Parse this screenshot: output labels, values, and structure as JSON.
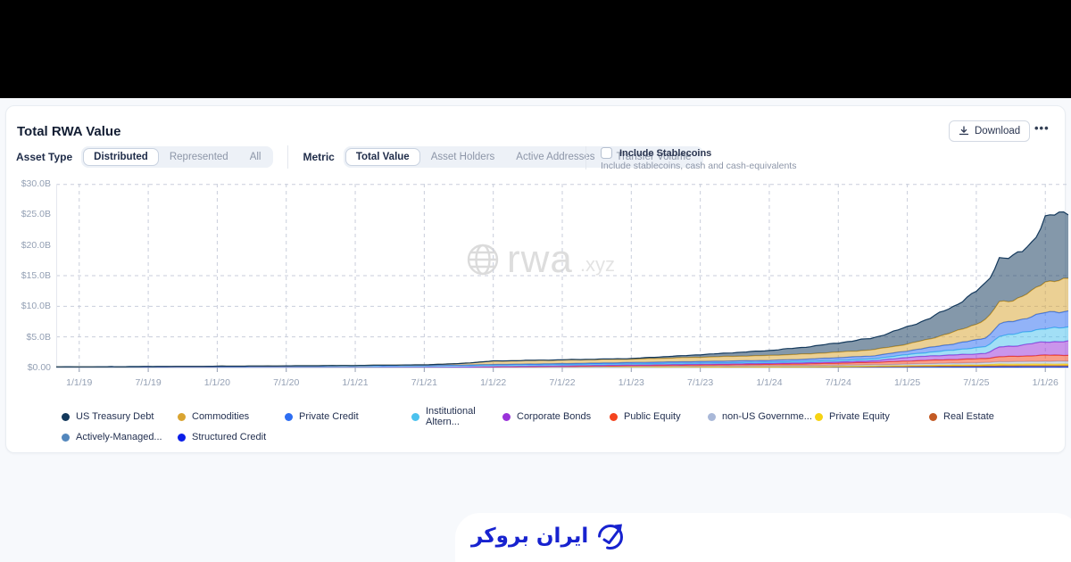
{
  "header": {
    "title": "Total RWA Value",
    "download_label": "Download",
    "more_label": "•••"
  },
  "filters": {
    "asset_type": {
      "label": "Asset Type",
      "options": [
        "Distributed",
        "Represented",
        "All"
      ],
      "selected": "Distributed"
    },
    "metric": {
      "label": "Metric",
      "options": [
        "Total Value",
        "Asset Holders",
        "Active Addresses",
        "Transfer Volume"
      ],
      "selected": "Total Value"
    },
    "stablecoins": {
      "label": "Include Stablecoins",
      "sublabel": "Include stablecoins, cash and cash-equivalents",
      "checked": false
    }
  },
  "watermark": {
    "brand": "rwa",
    "tld": ".xyz"
  },
  "footer_logo": {
    "text": "ایران بروکر",
    "color": "#1722cf"
  },
  "chart_data": {
    "type": "area",
    "stacked": true,
    "title": "Total RWA Value",
    "xlabel": "",
    "ylabel": "",
    "ylim": [
      0,
      30
    ],
    "grid": "dashed",
    "legend_position": "bottom",
    "y_tick_labels": [
      "$30.0B",
      "$25.0B",
      "$20.0B",
      "$15.0B",
      "$10.0B",
      "$5.0B",
      "$0.00"
    ],
    "y_tick_values": [
      30,
      25,
      20,
      15,
      10,
      5,
      0
    ],
    "y_gridline_values": [
      30,
      15,
      10,
      5
    ],
    "x_tick_labels": [
      "1/1/19",
      "7/1/19",
      "1/1/20",
      "7/1/20",
      "1/1/21",
      "7/1/21",
      "1/1/22",
      "7/1/22",
      "1/1/23",
      "7/1/23",
      "1/1/24",
      "7/1/24",
      "1/1/25",
      "7/1/25",
      "1/1/26"
    ],
    "x_tick_months": [
      0,
      6,
      12,
      18,
      24,
      30,
      36,
      42,
      48,
      54,
      60,
      66,
      72,
      78,
      84
    ],
    "x_domain_months": [
      -2,
      86
    ],
    "x_months": [
      -2,
      0,
      6,
      12,
      18,
      24,
      30,
      33,
      36,
      42,
      48,
      54,
      60,
      63,
      66,
      69,
      72,
      74,
      76,
      78,
      79,
      80,
      81,
      82,
      83,
      84,
      86
    ],
    "units": "USD billions",
    "series": [
      {
        "name": "US Treasury Debt",
        "color": "#14395c",
        "values": [
          0,
          0,
          0,
          0,
          0,
          0,
          0,
          0,
          0.01,
          0.02,
          0.1,
          0.4,
          0.8,
          1.1,
          1.5,
          1.9,
          2.8,
          3.4,
          4.2,
          5.3,
          6.0,
          7.2,
          7.0,
          7.4,
          8.2,
          10.4,
          11.0
        ]
      },
      {
        "name": "Commodities",
        "color": "#d9a431",
        "values": [
          0,
          0,
          0,
          0.01,
          0.02,
          0.03,
          0.1,
          0.25,
          0.55,
          0.6,
          0.55,
          0.7,
          0.8,
          0.85,
          0.9,
          1.0,
          1.1,
          1.4,
          1.9,
          2.6,
          3.0,
          3.6,
          3.4,
          3.7,
          4.2,
          5.1,
          5.2
        ]
      },
      {
        "name": "Private Credit",
        "color": "#2e6ef2",
        "values": [
          0,
          0,
          0,
          0,
          0,
          0.01,
          0.02,
          0.05,
          0.1,
          0.15,
          0.2,
          0.25,
          0.3,
          0.35,
          0.45,
          0.5,
          0.6,
          0.8,
          1.0,
          1.3,
          1.5,
          2.0,
          2.1,
          2.2,
          2.4,
          2.6,
          2.65
        ]
      },
      {
        "name": "Institutional Altern...",
        "color": "#4cc2ee",
        "values": [
          0.12,
          0.12,
          0.15,
          0.2,
          0.25,
          0.3,
          0.3,
          0.28,
          0.25,
          0.22,
          0.2,
          0.2,
          0.2,
          0.22,
          0.25,
          0.3,
          0.45,
          0.6,
          0.8,
          1.0,
          1.1,
          1.8,
          1.9,
          2.0,
          2.1,
          2.2,
          2.25
        ]
      },
      {
        "name": "Corporate Bonds",
        "color": "#9a33d9",
        "values": [
          0,
          0,
          0,
          0,
          0,
          0,
          0.01,
          0.02,
          0.05,
          0.08,
          0.1,
          0.12,
          0.15,
          0.18,
          0.2,
          0.25,
          0.6,
          0.7,
          0.75,
          0.8,
          0.85,
          1.6,
          1.7,
          1.8,
          2.0,
          2.2,
          2.25
        ]
      },
      {
        "name": "Public Equity",
        "color": "#f4441f",
        "values": [
          0,
          0,
          0,
          0,
          0,
          0,
          0.01,
          0.02,
          0.05,
          0.1,
          0.15,
          0.2,
          0.25,
          0.3,
          0.35,
          0.4,
          0.5,
          0.55,
          0.6,
          0.65,
          0.7,
          0.8,
          0.85,
          0.9,
          0.95,
          1.0,
          1.0
        ]
      },
      {
        "name": "non-US Governme...",
        "color": "#a9b8d8",
        "values": [
          0,
          0,
          0,
          0,
          0,
          0,
          0,
          0.01,
          0.02,
          0.05,
          0.1,
          0.12,
          0.15,
          0.15,
          0.18,
          0.2,
          0.25,
          0.3,
          0.3,
          0.35,
          0.35,
          0.4,
          0.4,
          0.4,
          0.42,
          0.45,
          0.45
        ]
      },
      {
        "name": "Private Equity",
        "color": "#f6d313",
        "values": [
          0,
          0,
          0,
          0,
          0,
          0,
          0,
          0,
          0.01,
          0.01,
          0.02,
          0.02,
          0.03,
          0.03,
          0.05,
          0.08,
          0.1,
          0.12,
          0.15,
          0.15,
          0.18,
          0.25,
          0.25,
          0.25,
          0.25,
          0.25,
          0.25
        ]
      },
      {
        "name": "Real Estate",
        "color": "#c35a24",
        "values": [
          0,
          0,
          0,
          0,
          0,
          0,
          0,
          0.01,
          0.02,
          0.03,
          0.04,
          0.05,
          0.05,
          0.06,
          0.06,
          0.07,
          0.08,
          0.08,
          0.09,
          0.09,
          0.1,
          0.1,
          0.1,
          0.1,
          0.1,
          0.1,
          0.1
        ]
      },
      {
        "name": "Actively-Managed...",
        "color": "#5387bd",
        "values": [
          0,
          0,
          0,
          0,
          0,
          0,
          0,
          0,
          0,
          0,
          0.01,
          0.02,
          0.03,
          0.04,
          0.05,
          0.06,
          0.08,
          0.09,
          0.1,
          0.1,
          0.11,
          0.12,
          0.12,
          0.12,
          0.12,
          0.12,
          0.12
        ]
      },
      {
        "name": "Structured Credit",
        "color": "#0b1ee8",
        "values": [
          0,
          0,
          0,
          0,
          0,
          0,
          0,
          0,
          0,
          0,
          0,
          0.01,
          0.02,
          0.02,
          0.03,
          0.04,
          0.05,
          0.06,
          0.07,
          0.08,
          0.08,
          0.09,
          0.09,
          0.1,
          0.1,
          0.1,
          0.1
        ]
      }
    ]
  }
}
